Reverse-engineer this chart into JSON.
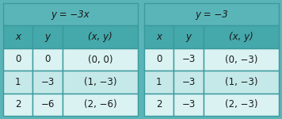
{
  "table1": {
    "title": "y = −3x",
    "title_italic_x": true,
    "headers": [
      "x",
      "y",
      "(x, y)"
    ],
    "rows": [
      [
        "0",
        "0",
        "(0, 0)"
      ],
      [
        "1",
        "−3",
        "(1, −3)"
      ],
      [
        "2",
        "−6",
        "(2, −6)"
      ]
    ]
  },
  "table2": {
    "title": "y = −3",
    "title_italic_x": false,
    "headers": [
      "x",
      "y",
      "(x, y)"
    ],
    "rows": [
      [
        "0",
        "−3",
        "(0, −3)"
      ],
      [
        "1",
        "−3",
        "(1, −3)"
      ],
      [
        "2",
        "−3",
        "(2, −3)"
      ]
    ]
  },
  "title_bg": "#5ab5b8",
  "header_bg": "#45a8ab",
  "row_bg_odd": "#daf2f2",
  "row_bg_even": "#c5e8e8",
  "border_color": "#3a9a9d",
  "text_color": "#1a1a1a",
  "fig_bg": "#5ab5b8",
  "fontsize": 8.5
}
